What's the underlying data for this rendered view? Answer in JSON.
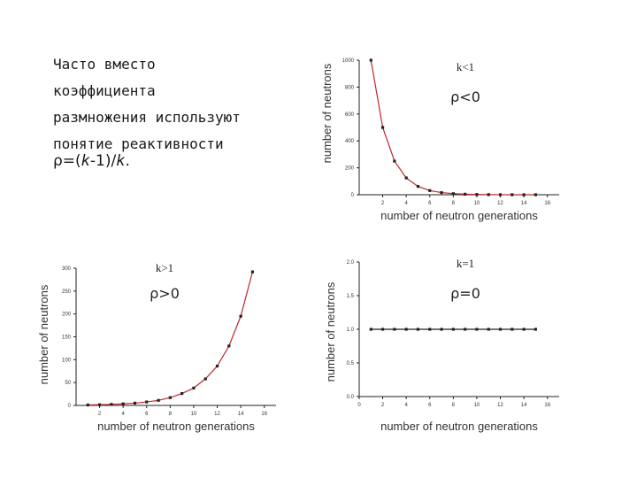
{
  "text": {
    "lines": [
      "Часто вместо",
      "коэффициента",
      "размножения используют",
      "понятие реактивности"
    ],
    "formula_prefix": "ρ=(",
    "formula_k": "k",
    "formula_mid": "-1)/",
    "formula_k2": "k",
    "formula_suffix": "."
  },
  "chart_data": [
    {
      "id": "k-less",
      "type": "scatter",
      "annotation_k": "k<1",
      "annotation_rho": "ρ<0",
      "xlabel": "number of neutron generations",
      "ylabel": "number of neutrons",
      "xlim": [
        0,
        17
      ],
      "ylim": [
        0,
        1000
      ],
      "xticks": [
        2,
        4,
        6,
        8,
        10,
        12,
        14,
        16
      ],
      "yticks": [
        0,
        200,
        400,
        600,
        800,
        1000
      ],
      "x": [
        1,
        2,
        3,
        4,
        5,
        6,
        7,
        8,
        9,
        10,
        11,
        12,
        13,
        14,
        15
      ],
      "y": [
        1000,
        500,
        250,
        125,
        62,
        31,
        16,
        8,
        4,
        2,
        1,
        0.5,
        0.2,
        0.1,
        0.06
      ],
      "curve": true
    },
    {
      "id": "k-greater",
      "type": "scatter",
      "annotation_k": "k>1",
      "annotation_rho": "ρ>0",
      "xlabel": "number of neutron generations",
      "ylabel": "number of neutrons",
      "xlim": [
        0,
        17
      ],
      "ylim": [
        0,
        300
      ],
      "xticks": [
        2,
        4,
        6,
        8,
        10,
        12,
        14,
        16
      ],
      "yticks": [
        0,
        50,
        100,
        150,
        200,
        250,
        300
      ],
      "x": [
        1,
        2,
        3,
        4,
        5,
        6,
        7,
        8,
        9,
        10,
        11,
        12,
        13,
        14,
        15
      ],
      "y": [
        1,
        1.5,
        2.3,
        3.4,
        5,
        7.6,
        11,
        17,
        26,
        38,
        58,
        86,
        130,
        195,
        292
      ],
      "curve": true
    },
    {
      "id": "k-equal",
      "type": "line",
      "annotation_k": "k=1",
      "annotation_rho": "ρ=0",
      "xlabel": "number of neutron generations",
      "ylabel": "number of neutrons",
      "xlim": [
        0,
        17
      ],
      "ylim": [
        0,
        2.0
      ],
      "xticks": [
        0,
        2,
        4,
        6,
        8,
        10,
        12,
        14,
        16
      ],
      "yticks": [
        0.0,
        0.5,
        1.0,
        1.5,
        2.0
      ],
      "x": [
        1,
        2,
        3,
        4,
        5,
        6,
        7,
        8,
        9,
        10,
        11,
        12,
        13,
        14,
        15
      ],
      "y": [
        1,
        1,
        1,
        1,
        1,
        1,
        1,
        1,
        1,
        1,
        1,
        1,
        1,
        1,
        1
      ],
      "curve": false
    }
  ]
}
